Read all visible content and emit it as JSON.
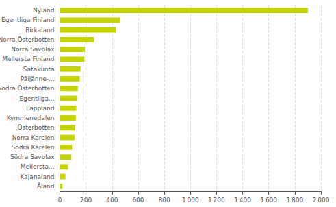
{
  "chart_data": {
    "type": "bar",
    "orientation": "horizontal",
    "categories": [
      "Åland",
      "Kajanaland",
      "Mellersta...",
      "Södra Savolax",
      "Södra Karelen",
      "Norra Karelen",
      "Österbotten",
      "Kymmenedalen",
      "Lappland",
      "Egentliga...",
      "Södra Österbotten",
      "Päijänne-...",
      "Satakunta",
      "Mellersta Finland",
      "Norra Savolax",
      "Norra Österbotten",
      "Birkaland",
      "Egentliga Finland",
      "Nyland"
    ],
    "values": [
      18,
      42,
      62,
      88,
      92,
      112,
      118,
      122,
      126,
      130,
      138,
      152,
      158,
      188,
      192,
      262,
      428,
      462,
      1900
    ],
    "color": "#c5d400",
    "xlim": [
      0,
      2000
    ],
    "xticks": [
      0,
      200,
      400,
      600,
      800,
      {
        "value": 1000,
        "label": "1 000"
      },
      {
        "value": 1200,
        "label": "1 200"
      },
      {
        "value": 1400,
        "label": "1 400"
      },
      {
        "value": 1600,
        "label": "1 600"
      },
      {
        "value": 1800,
        "label": "1 800"
      },
      {
        "value": 2000,
        "label": "2 000"
      }
    ],
    "grid": true
  }
}
